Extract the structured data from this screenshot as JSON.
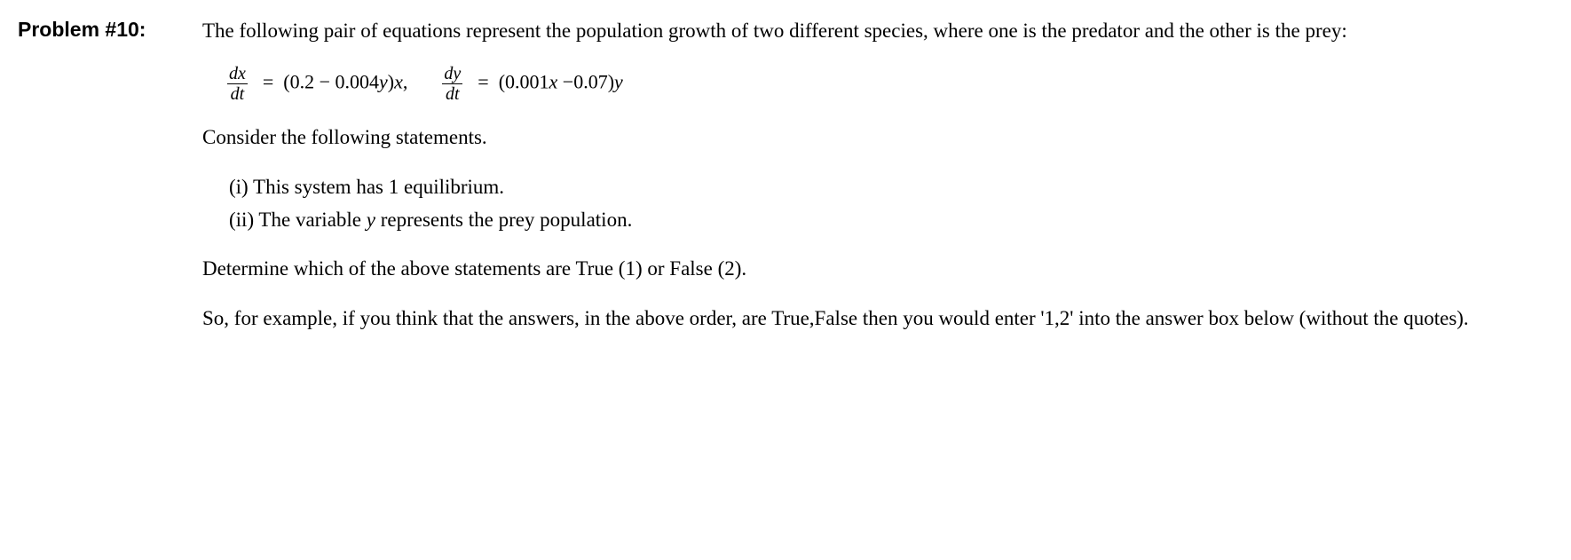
{
  "label": "Problem #10:",
  "intro": "The following pair of equations represent the population growth of two different species, where one is the predator and the other is the prey:",
  "eq": {
    "dx_num": "dx",
    "dx_den": "dt",
    "eq1_rhs_a": " =  (0.2 − 0.004",
    "eq1_rhs_b": ")",
    "comma": ",",
    "dy_num": "dy",
    "dy_den": "dt",
    "eq2_rhs_a": " =  (0.001",
    "eq2_rhs_b": " −0.07)",
    "var_y": "y",
    "var_x": "x"
  },
  "consider": "Consider the following statements.",
  "stmt1": "(i) This system has 1 equilibrium.",
  "stmt2_a": "(ii) The variable ",
  "stmt2_var": "y",
  "stmt2_b": " represents the prey population.",
  "determine": "Determine which of the above statements are True (1) or False (2).",
  "example": "So, for example, if you think that the answers, in the above order, are True,False then you would enter '1,2' into the answer box below (without the quotes)."
}
